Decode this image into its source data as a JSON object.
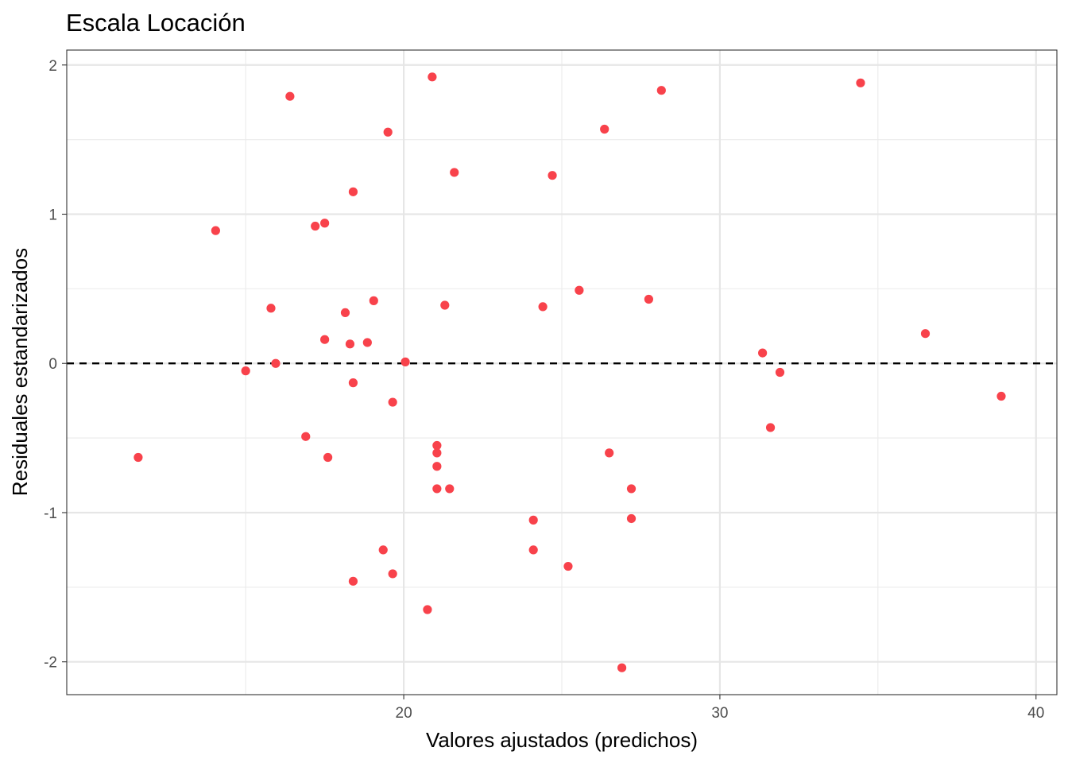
{
  "chart_data": {
    "type": "scatter",
    "title": "Escala Locación",
    "xlabel": "Valores ajustados (predichos)",
    "ylabel": "Residuales estandarizados",
    "xlim": [
      9.34,
      40.66
    ],
    "ylim": [
      -2.22,
      2.1
    ],
    "x_major_ticks": [
      20,
      30,
      40
    ],
    "x_minor_ticks": [
      15,
      25,
      35
    ],
    "y_major_ticks": [
      -2,
      -1,
      0,
      1,
      2
    ],
    "y_minor_ticks": [
      -1.5,
      -0.5,
      0.5,
      1.5
    ],
    "x_tick_labels": [
      "20",
      "30",
      "40"
    ],
    "y_tick_labels": [
      "-2",
      "-1",
      "0",
      "1",
      "2"
    ],
    "grid": true,
    "theme": "bw",
    "point_color": "#f8424b",
    "reference_line": {
      "y": 0,
      "style": "dashed",
      "color": "#000000"
    },
    "points": [
      {
        "x": 11.6,
        "y": -0.63
      },
      {
        "x": 14.05,
        "y": 0.89
      },
      {
        "x": 15.0,
        "y": -0.05
      },
      {
        "x": 15.8,
        "y": 0.37
      },
      {
        "x": 15.95,
        "y": 0.0
      },
      {
        "x": 16.4,
        "y": 1.79
      },
      {
        "x": 16.9,
        "y": -0.49
      },
      {
        "x": 17.2,
        "y": 0.92
      },
      {
        "x": 17.5,
        "y": 0.16
      },
      {
        "x": 17.5,
        "y": 0.94
      },
      {
        "x": 17.6,
        "y": -0.63
      },
      {
        "x": 18.15,
        "y": 0.34
      },
      {
        "x": 18.3,
        "y": 0.13
      },
      {
        "x": 18.4,
        "y": 1.15
      },
      {
        "x": 18.4,
        "y": -0.13
      },
      {
        "x": 18.4,
        "y": -1.46
      },
      {
        "x": 18.85,
        "y": 0.14
      },
      {
        "x": 19.05,
        "y": 0.42
      },
      {
        "x": 19.35,
        "y": -1.25
      },
      {
        "x": 19.5,
        "y": 1.55
      },
      {
        "x": 19.65,
        "y": -0.26
      },
      {
        "x": 19.65,
        "y": -1.41
      },
      {
        "x": 20.05,
        "y": 0.01
      },
      {
        "x": 20.75,
        "y": -1.65
      },
      {
        "x": 20.9,
        "y": 1.92
      },
      {
        "x": 21.05,
        "y": -0.55
      },
      {
        "x": 21.05,
        "y": -0.6
      },
      {
        "x": 21.05,
        "y": -0.69
      },
      {
        "x": 21.05,
        "y": -0.84
      },
      {
        "x": 21.3,
        "y": 0.39
      },
      {
        "x": 21.45,
        "y": -0.84
      },
      {
        "x": 21.6,
        "y": 1.28
      },
      {
        "x": 24.1,
        "y": -1.05
      },
      {
        "x": 24.1,
        "y": -1.25
      },
      {
        "x": 24.4,
        "y": 0.38
      },
      {
        "x": 24.7,
        "y": 1.26
      },
      {
        "x": 25.2,
        "y": -1.36
      },
      {
        "x": 25.55,
        "y": 0.49
      },
      {
        "x": 26.35,
        "y": 1.57
      },
      {
        "x": 26.5,
        "y": -0.6
      },
      {
        "x": 26.9,
        "y": -2.04
      },
      {
        "x": 27.2,
        "y": -0.84
      },
      {
        "x": 27.2,
        "y": -1.04
      },
      {
        "x": 27.75,
        "y": 0.43
      },
      {
        "x": 28.15,
        "y": 1.83
      },
      {
        "x": 31.35,
        "y": 0.07
      },
      {
        "x": 31.6,
        "y": -0.43
      },
      {
        "x": 31.9,
        "y": -0.06
      },
      {
        "x": 34.45,
        "y": 1.88
      },
      {
        "x": 36.5,
        "y": 0.2
      },
      {
        "x": 38.9,
        "y": -0.22
      }
    ]
  }
}
